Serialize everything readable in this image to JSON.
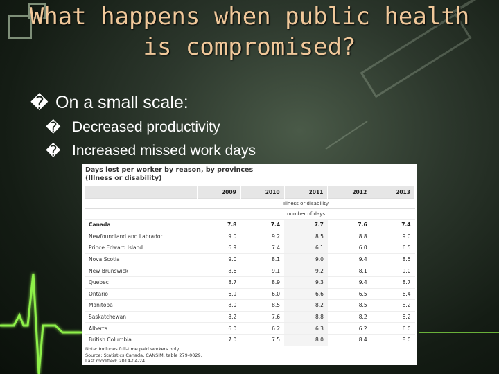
{
  "slide": {
    "title_line1": "What happens when public health",
    "title_line2": "is compromised?",
    "bullet_glyph": "�",
    "bullets": [
      {
        "text": "On a small scale:",
        "sub": [
          {
            "text": "Decreased productivity"
          },
          {
            "text": "Increased missed work days"
          }
        ]
      }
    ],
    "colors": {
      "title": "#f0c89a",
      "background": "#1e281e",
      "ecg": "#8ef04a"
    }
  },
  "table": {
    "title_line1": "Days lost per worker by reason, by provinces",
    "title_line2": "(Illness or disability)",
    "years": [
      "2009",
      "2010",
      "2011",
      "2012",
      "2013"
    ],
    "reason": "Illness or disability",
    "unit": "number of days",
    "rows": [
      {
        "name": "Canada",
        "values": [
          "7.8",
          "7.4",
          "7.7",
          "7.6",
          "7.4"
        ]
      },
      {
        "name": "Newfoundland and Labrador",
        "values": [
          "9.0",
          "9.2",
          "8.5",
          "8.8",
          "9.0"
        ]
      },
      {
        "name": "Prince Edward Island",
        "values": [
          "6.9",
          "7.4",
          "6.1",
          "6.0",
          "6.5"
        ]
      },
      {
        "name": "Nova Scotia",
        "values": [
          "9.0",
          "8.1",
          "9.0",
          "9.4",
          "8.5"
        ]
      },
      {
        "name": "New Brunswick",
        "values": [
          "8.6",
          "9.1",
          "9.2",
          "8.1",
          "9.0"
        ]
      },
      {
        "name": "Quebec",
        "values": [
          "8.7",
          "8.9",
          "9.3",
          "9.4",
          "8.7"
        ]
      },
      {
        "name": "Ontario",
        "values": [
          "6.9",
          "6.0",
          "6.6",
          "6.5",
          "6.4"
        ]
      },
      {
        "name": "Manitoba",
        "values": [
          "8.0",
          "8.5",
          "8.2",
          "8.5",
          "8.2"
        ]
      },
      {
        "name": "Saskatchewan",
        "values": [
          "8.2",
          "7.6",
          "8.8",
          "8.2",
          "8.2"
        ]
      },
      {
        "name": "Alberta",
        "values": [
          "6.0",
          "6.2",
          "6.3",
          "6.2",
          "6.0"
        ]
      },
      {
        "name": "British Columbia",
        "values": [
          "7.0",
          "7.5",
          "8.0",
          "8.4",
          "8.0"
        ]
      }
    ],
    "note_line1": "Note: Includes full-time paid workers only.",
    "note_line2": "Source: Statistics Canada, CANSIM, table 279-0029.",
    "note_line3": "Last modified: 2014-04-24."
  }
}
